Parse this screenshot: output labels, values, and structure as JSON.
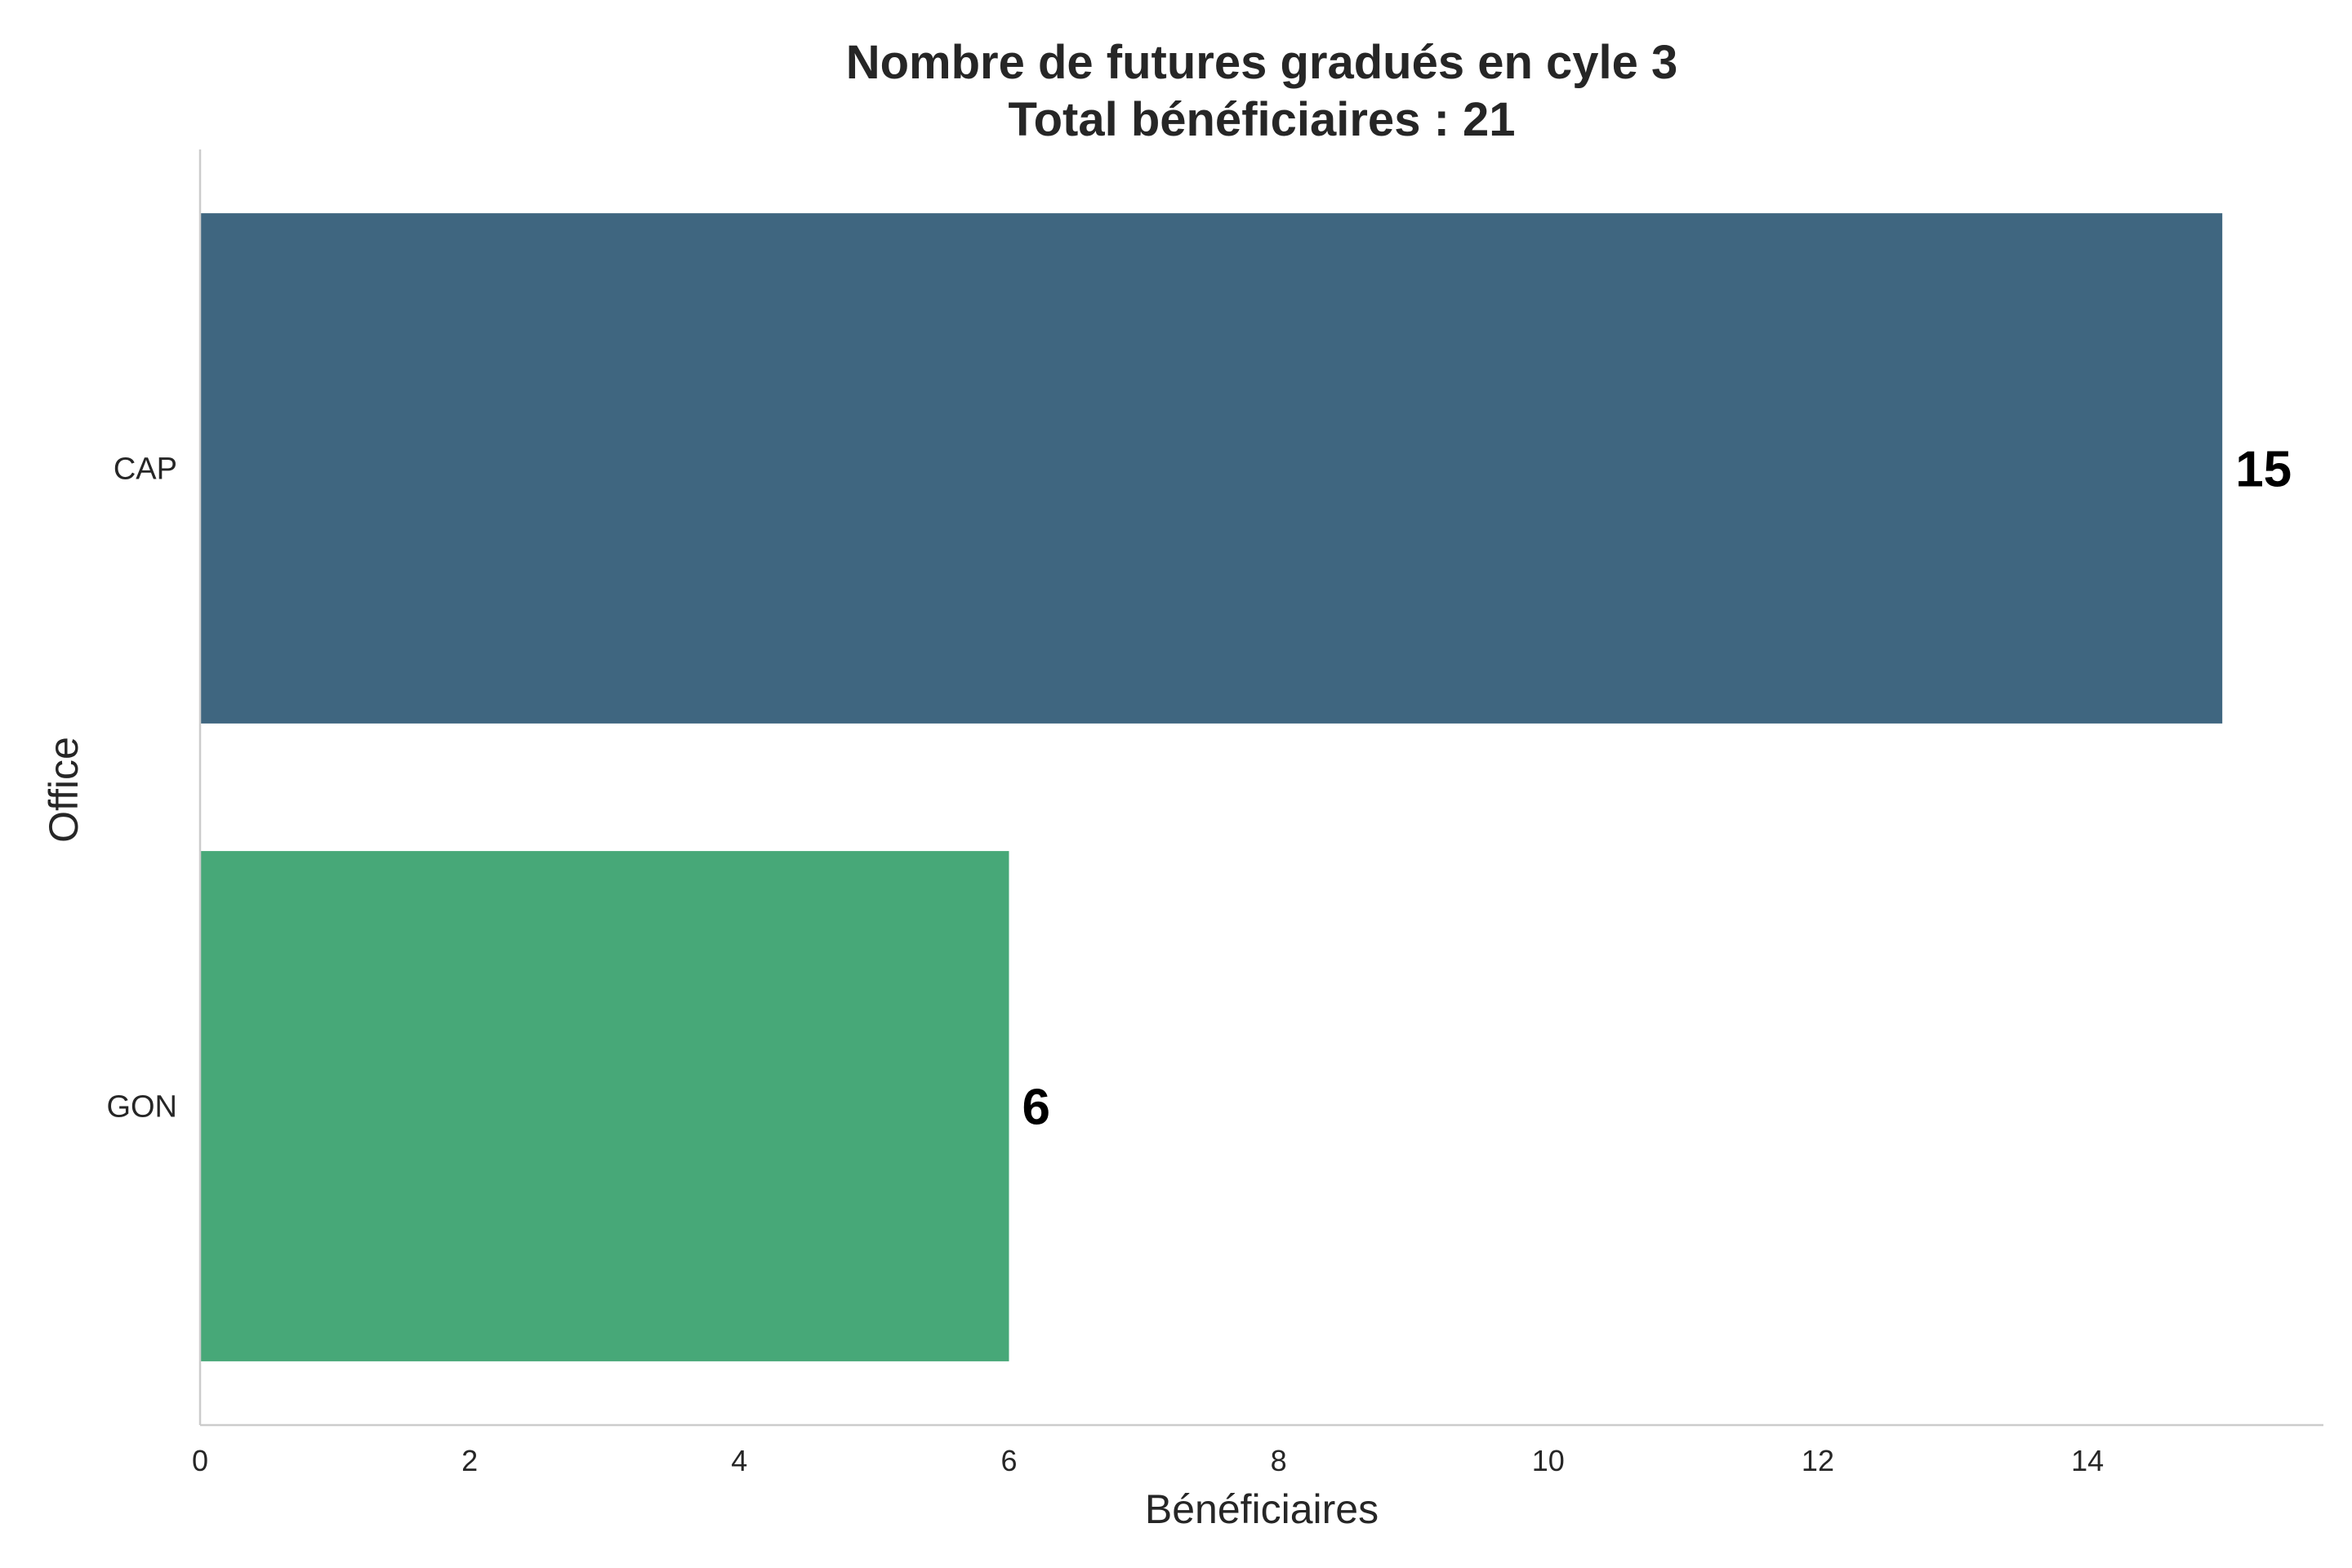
{
  "chart_data": {
    "type": "bar",
    "orientation": "horizontal",
    "title": [
      "Nombre de futures gradués en cyle 3",
      "Total bénéficiaires : 21"
    ],
    "xlabel": "Bénéficiaires",
    "ylabel": "Office",
    "categories": [
      "CAP",
      "GON"
    ],
    "values": [
      15,
      6
    ],
    "data_labels": [
      "15",
      "6"
    ],
    "colors": [
      "#3f6680",
      "#47a878"
    ],
    "xlim": [
      0,
      15.75
    ],
    "xticks": [
      0,
      2,
      4,
      6,
      8,
      10,
      12,
      14
    ],
    "grid": false,
    "legend": "none"
  }
}
